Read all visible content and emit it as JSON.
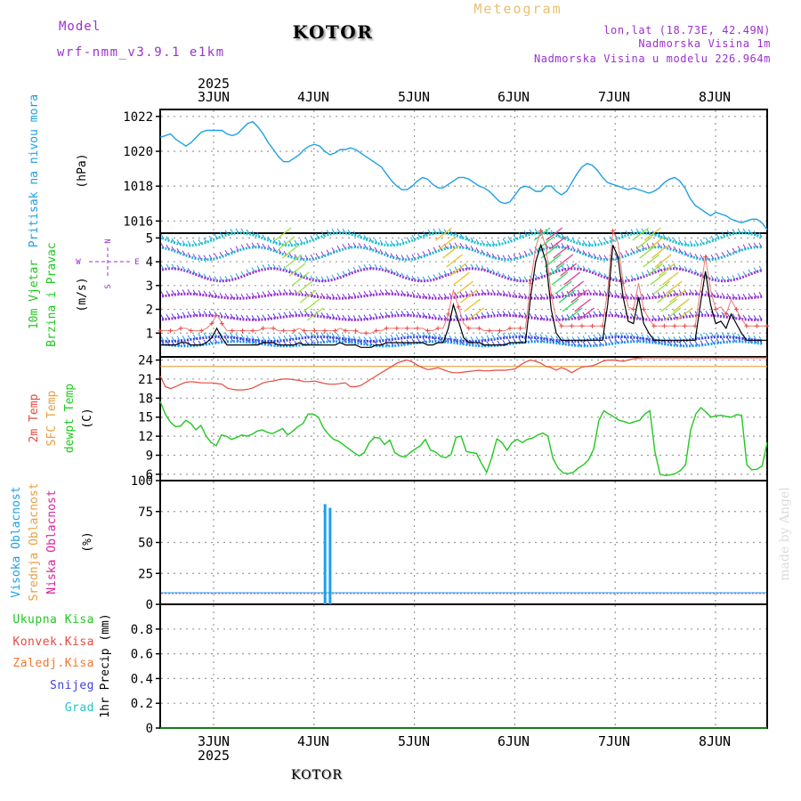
{
  "header": {
    "model_label": "Model",
    "model_name": "wrf-nmm_v3.9.1 e1km",
    "station": "KOTOR",
    "chart_title": "Meteogram",
    "coords": "lon,lat (18.73E, 42.49N)",
    "elevation": "Nadmorska Visina 1m",
    "model_elevation": "Nadmorska Visina u modelu 226.964m",
    "footer_station": "KOTOR",
    "watermark": "made by Angel"
  },
  "colors": {
    "pressure": "#1ea0e6",
    "temp2m": "#e8483c",
    "sfc_temp": "#e8a040",
    "dewpoint": "#20c820",
    "wind_speed": "#000000",
    "purple": "#9b30d0",
    "high_cloud": "#1ea0e6",
    "mid_cloud": "#e8a040",
    "low_cloud": "#e0209a",
    "precip_total": "#20c820",
    "precip_conv": "#e8483c",
    "precip_frozen": "#f07830",
    "snow": "#4040e0",
    "graupel": "#20c8c8"
  },
  "chart_data": [
    {
      "type": "line",
      "panel": "pressure",
      "ylabel_main": "Pritisak na nivou mora",
      "ylabel_unit": "(hPa)",
      "ylim": [
        1015.3,
        1022.4
      ],
      "yticks": [
        "1022",
        "1020",
        "1018",
        "1016"
      ],
      "ytick_values": [
        1022,
        1020,
        1018,
        1016
      ],
      "x_top_year": "2025",
      "x_tick_labels": [
        "3JUN",
        "4JUN",
        "5JUN",
        "6JUN",
        "7JUN",
        "8JUN"
      ],
      "grid": true,
      "series": [
        {
          "values": [
            1020.8,
            1020.9,
            1021.0,
            1020.7,
            1020.5,
            1020.3,
            1020.5,
            1020.8,
            1021.1,
            1021.2,
            1021.2,
            1021.2,
            1021.2,
            1021.0,
            1020.9,
            1021.0,
            1021.3,
            1021.6,
            1021.7,
            1021.4,
            1021.0,
            1020.5,
            1020.1,
            1019.7,
            1019.4,
            1019.4,
            1019.6,
            1019.8,
            1020.1,
            1020.3,
            1020.4,
            1020.3,
            1020.0,
            1019.8,
            1019.9,
            1020.1,
            1020.1,
            1020.2,
            1020.1,
            1019.9,
            1019.7,
            1019.5,
            1019.3,
            1019.1,
            1018.7,
            1018.3,
            1018.0,
            1017.8,
            1017.8,
            1018.0,
            1018.3,
            1018.5,
            1018.4,
            1018.1,
            1017.9,
            1017.9,
            1018.1,
            1018.3,
            1018.5,
            1018.5,
            1018.4,
            1018.2,
            1018.0,
            1017.9,
            1017.7,
            1017.4,
            1017.1,
            1017.0,
            1017.1,
            1017.5,
            1017.9,
            1018.0,
            1017.9,
            1017.7,
            1017.7,
            1018.0,
            1018.0,
            1017.7,
            1017.5,
            1017.7,
            1018.2,
            1018.7,
            1019.1,
            1019.3,
            1019.2,
            1018.9,
            1018.5,
            1018.2,
            1018.1,
            1018.0,
            1017.9,
            1017.8,
            1017.9,
            1017.8,
            1017.7,
            1017.6,
            1017.7,
            1017.9,
            1018.2,
            1018.4,
            1018.5,
            1018.3,
            1017.9,
            1017.3,
            1016.9,
            1016.7,
            1016.5,
            1016.3,
            1016.5,
            1016.4,
            1016.3,
            1016.1,
            1016.0,
            1015.9,
            1016.0,
            1016.1,
            1016.1,
            1015.9,
            1015.5
          ]
        }
      ]
    },
    {
      "type": "line",
      "panel": "wind",
      "ylabel_main": "10m Vjetar",
      "ylabel_sub": "Brzina i Pravac",
      "ylabel_unit": "(m/s)",
      "compass": [
        "N",
        "W",
        "E",
        "S"
      ],
      "ylim": [
        0,
        5.2
      ],
      "yticks": [
        "5",
        "4",
        "3",
        "2",
        "1"
      ],
      "ytick_values": [
        5,
        4,
        3,
        2,
        1
      ],
      "grid": true,
      "series": [
        {
          "values": [
            0.5,
            0.5,
            0.5,
            0.5,
            0.6,
            0.6,
            0.5,
            0.5,
            0.5,
            0.6,
            0.8,
            1.2,
            0.8,
            0.5,
            0.5,
            0.5,
            0.5,
            0.5,
            0.5,
            0.5,
            0.6,
            0.6,
            0.6,
            0.5,
            0.5,
            0.5,
            0.5,
            0.6,
            0.5,
            0.5,
            0.5,
            0.5,
            0.5,
            0.5,
            0.5,
            0.6,
            0.5,
            0.5,
            0.5,
            0.4,
            0.4,
            0.4,
            0.5,
            0.5,
            0.6,
            0.6,
            0.6,
            0.6,
            0.6,
            0.6,
            0.6,
            0.6,
            0.5,
            0.5,
            0.6,
            0.6,
            1.2,
            2.2,
            1.5,
            0.8,
            0.6,
            0.6,
            0.6,
            0.5,
            0.5,
            0.5,
            0.5,
            0.5,
            0.6,
            0.6,
            0.6,
            0.6,
            2.5,
            4.0,
            4.7,
            4.0,
            2.0,
            1.0,
            0.7,
            0.7,
            0.7,
            0.7,
            0.7,
            0.7,
            0.7,
            0.7,
            0.7,
            2.2,
            4.7,
            4.2,
            2.5,
            1.5,
            1.4,
            2.5,
            1.4,
            1.0,
            0.7,
            0.7,
            0.7,
            0.7,
            0.7,
            0.7,
            0.7,
            0.7,
            0.7,
            2.2,
            3.6,
            2.2,
            1.4,
            1.5,
            1.2,
            1.8,
            1.4,
            1.0,
            0.7,
            0.7,
            0.7,
            0.7,
            0.7
          ]
        }
      ]
    },
    {
      "type": "line",
      "panel": "temperature",
      "ylabel_t2": "2m Temp",
      "ylabel_sfc": "SFC Temp",
      "ylabel_dew": "dewpt Temp",
      "ylabel_unit": "(C)",
      "ylim": [
        5,
        24.5
      ],
      "yticks": [
        "24",
        "21",
        "18",
        "15",
        "12",
        "9",
        "6"
      ],
      "ytick_values": [
        24,
        21,
        18,
        15,
        12,
        9,
        6
      ],
      "grid": true,
      "series": [
        {
          "values": [
            21.5,
            19.8,
            19.5,
            19.8,
            20.2,
            20.5,
            20.6,
            20.5,
            20.4,
            20.4,
            20.4,
            20.3,
            20.2,
            19.6,
            19.4,
            19.3,
            19.3,
            19.4,
            19.6,
            20.0,
            20.4,
            20.6,
            20.7,
            20.9,
            21.0,
            21.0,
            20.9,
            20.8,
            20.6,
            20.6,
            20.7,
            20.5,
            20.3,
            20.2,
            20.2,
            20.3,
            20.4,
            19.8,
            19.8,
            20.0,
            20.5,
            21.0,
            21.5,
            22.0,
            22.5,
            23.0,
            23.5,
            23.8,
            24.0,
            23.7,
            23.2,
            22.8,
            22.5,
            22.6,
            22.8,
            22.5,
            22.2,
            22.0,
            22.0,
            22.1,
            22.2,
            22.3,
            22.4,
            22.3,
            22.3,
            22.4,
            22.4,
            22.4,
            22.5,
            22.6,
            23.2,
            23.7,
            24.0,
            23.8,
            23.5,
            23.0,
            22.8,
            22.4,
            22.8,
            22.5,
            22.0,
            22.5,
            22.9,
            23.0,
            23.1,
            23.4,
            23.8,
            24.0,
            24.0,
            23.9,
            23.8,
            24.0,
            24.2,
            24.3,
            24.4,
            24.5,
            24.6,
            24.7,
            24.8,
            24.9,
            25.0,
            25.0,
            25.1,
            25.1,
            25.2,
            25.2,
            25.2,
            25.2,
            25.2,
            25.2,
            25.2,
            25.2,
            25.2,
            25.2,
            25.2,
            25.2,
            25.2,
            25.2,
            25.2
          ]
        },
        {
          "values": [
            23.0,
            23.0,
            23.0,
            23.0,
            23.0,
            23.0,
            23.0,
            23.0,
            23.0,
            23.0,
            23.0,
            23.0,
            23.0,
            23.0,
            23.0,
            23.0,
            23.0,
            23.0,
            23.0,
            23.0,
            23.0,
            23.0,
            23.0,
            23.0,
            23.0,
            23.0,
            23.0,
            23.0,
            23.0,
            23.0,
            23.0,
            23.0,
            23.0,
            23.0,
            23.0,
            23.0,
            23.0,
            23.0,
            23.0,
            23.0,
            23.0,
            23.0,
            23.0,
            23.0,
            23.0,
            23.0,
            23.0,
            23.0,
            23.0,
            23.0,
            23.0,
            23.0,
            23.0,
            23.0,
            23.0,
            23.0,
            23.0,
            23.0,
            23.0,
            23.0,
            23.0,
            23.0,
            23.0,
            23.0,
            23.0,
            23.0,
            23.0,
            23.0,
            23.0,
            23.0,
            23.0,
            23.0,
            23.0,
            23.0,
            23.0,
            23.0,
            23.0,
            23.0,
            23.0,
            23.0,
            23.0,
            23.0,
            23.0,
            23.0,
            23.0,
            23.0,
            23.0,
            23.0,
            23.0,
            23.0,
            23.0,
            23.0,
            23.0,
            23.0,
            23.0,
            23.0,
            23.0,
            23.0,
            23.0,
            23.0,
            23.0,
            23.0,
            23.0,
            23.0,
            23.0,
            23.0,
            23.0,
            23.0,
            23.0,
            23.0,
            23.0,
            23.0,
            23.0,
            23.0,
            23.0,
            23.0,
            23.0,
            23.0,
            23.0
          ]
        },
        {
          "values": [
            17.5,
            15.5,
            14.2,
            13.5,
            13.6,
            14.5,
            14.0,
            13.0,
            13.7,
            12.0,
            11.0,
            10.5,
            12.2,
            12.0,
            11.5,
            11.8,
            12.2,
            12.0,
            12.3,
            12.8,
            13.0,
            12.6,
            12.4,
            12.8,
            13.2,
            12.2,
            12.8,
            13.5,
            14.0,
            15.5,
            15.5,
            15.0,
            13.3,
            12.3,
            11.5,
            11.2,
            10.6,
            10.0,
            9.4,
            8.9,
            9.4,
            11.0,
            11.8,
            11.7,
            10.7,
            11.4,
            9.4,
            8.9,
            8.7,
            9.4,
            10.0,
            10.5,
            11.5,
            9.8,
            9.5,
            8.8,
            8.6,
            9.1,
            11.8,
            12.0,
            9.6,
            9.4,
            9.3,
            7.7,
            6.3,
            8.6,
            11.6,
            11.0,
            9.8,
            11.0,
            11.5,
            11.0,
            11.5,
            11.7,
            12.2,
            12.5,
            12.0,
            8.5,
            7.0,
            6.2,
            6.1,
            6.3,
            7.0,
            7.5,
            8.3,
            10.0,
            14.5,
            16.0,
            15.5,
            15.0,
            14.5,
            14.3,
            14.0,
            14.3,
            14.5,
            15.5,
            16.0,
            9.5,
            6.0,
            5.8,
            5.9,
            6.1,
            6.6,
            7.5,
            13.0,
            15.5,
            16.5,
            15.8,
            15.0,
            15.2,
            15.3,
            15.1,
            15.0,
            15.4,
            15.3,
            7.5,
            6.7,
            6.8,
            7.3,
            11.0
          ]
        }
      ]
    },
    {
      "type": "bar",
      "panel": "cloud",
      "ylabel_high": "Visoka Oblacnost",
      "ylabel_mid": "Srednja Oblacnost",
      "ylabel_low": "Niska Oblacnost",
      "ylabel_unit": "(%)",
      "ylim": [
        0,
        100
      ],
      "yticks": [
        "100",
        "75",
        "50",
        "25",
        "0"
      ],
      "ytick_values": [
        100,
        75,
        50,
        25,
        0
      ],
      "grid": true,
      "bars": [
        {
          "day": 1.64,
          "value": 81
        },
        {
          "day": 1.69,
          "value": 78
        }
      ]
    },
    {
      "type": "line",
      "panel": "precipitation",
      "legend": [
        "Ukupna Kisa",
        "Konvek.Kisa",
        "Zaledj.Kisa",
        "Snijeg",
        "Grad"
      ],
      "ylabel_unit": "1hr Precip (mm)",
      "ylim": [
        0,
        1.0
      ],
      "yticks": [
        "0.8",
        "0.6",
        "0.4",
        "0.2",
        "0"
      ],
      "ytick_values": [
        0.8,
        0.6,
        0.4,
        0.2,
        0
      ],
      "x_tick_labels": [
        "3JUN",
        "4JUN",
        "5JUN",
        "6JUN",
        "7JUN",
        "8JUN"
      ],
      "x_bottom_year": "2025",
      "grid": true,
      "series": [
        {
          "values": [
            0,
            0,
            0,
            0,
            0,
            0,
            0,
            0,
            0,
            0,
            0,
            0
          ]
        }
      ]
    }
  ]
}
